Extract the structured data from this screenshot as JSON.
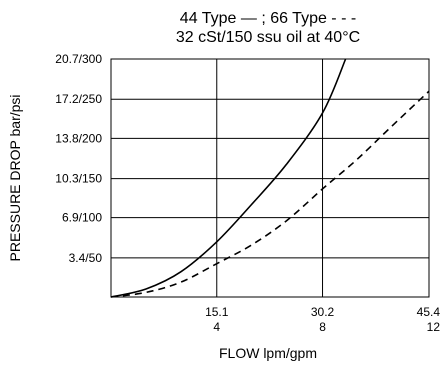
{
  "chart_data": {
    "type": "line",
    "title": [
      "44 Type — ; 66 Type - - -",
      "32 cSt/150 ssu oil at 40°C"
    ],
    "xlabel": "FLOW lpm/gpm",
    "ylabel": "PRESSURE DROP bar/psi",
    "x_ticks": [
      {
        "value": 15.1,
        "label_top": "15.1",
        "label_bottom": "4"
      },
      {
        "value": 30.2,
        "label_top": "30.2",
        "label_bottom": "8"
      },
      {
        "value": 45.4,
        "label_top": "45.4",
        "label_bottom": "12"
      }
    ],
    "y_ticks": [
      {
        "value": 3.4,
        "label": "3.4/50"
      },
      {
        "value": 6.9,
        "label": "6.9/100"
      },
      {
        "value": 10.3,
        "label": "10.3/150"
      },
      {
        "value": 13.8,
        "label": "13.8/200"
      },
      {
        "value": 17.2,
        "label": "17.2/250"
      },
      {
        "value": 20.7,
        "label": "20.7/300"
      }
    ],
    "xlim": [
      0,
      45.4
    ],
    "ylim": [
      0,
      20.7
    ],
    "grid": true,
    "series": [
      {
        "style": "solid",
        "color": "#000000",
        "x": [
          0,
          5,
          10,
          15.1,
          20,
          25,
          30.2,
          33.5
        ],
        "y": [
          0,
          0.7,
          2.2,
          4.8,
          8.0,
          11.5,
          16.0,
          20.7
        ]
      },
      {
        "style": "dashed",
        "color": "#000000",
        "x": [
          0,
          5,
          10,
          15.1,
          20,
          25,
          30.2,
          35,
          40,
          45.4
        ],
        "y": [
          0,
          0.4,
          1.3,
          2.9,
          4.5,
          6.6,
          9.4,
          11.9,
          14.8,
          17.9
        ]
      }
    ]
  }
}
